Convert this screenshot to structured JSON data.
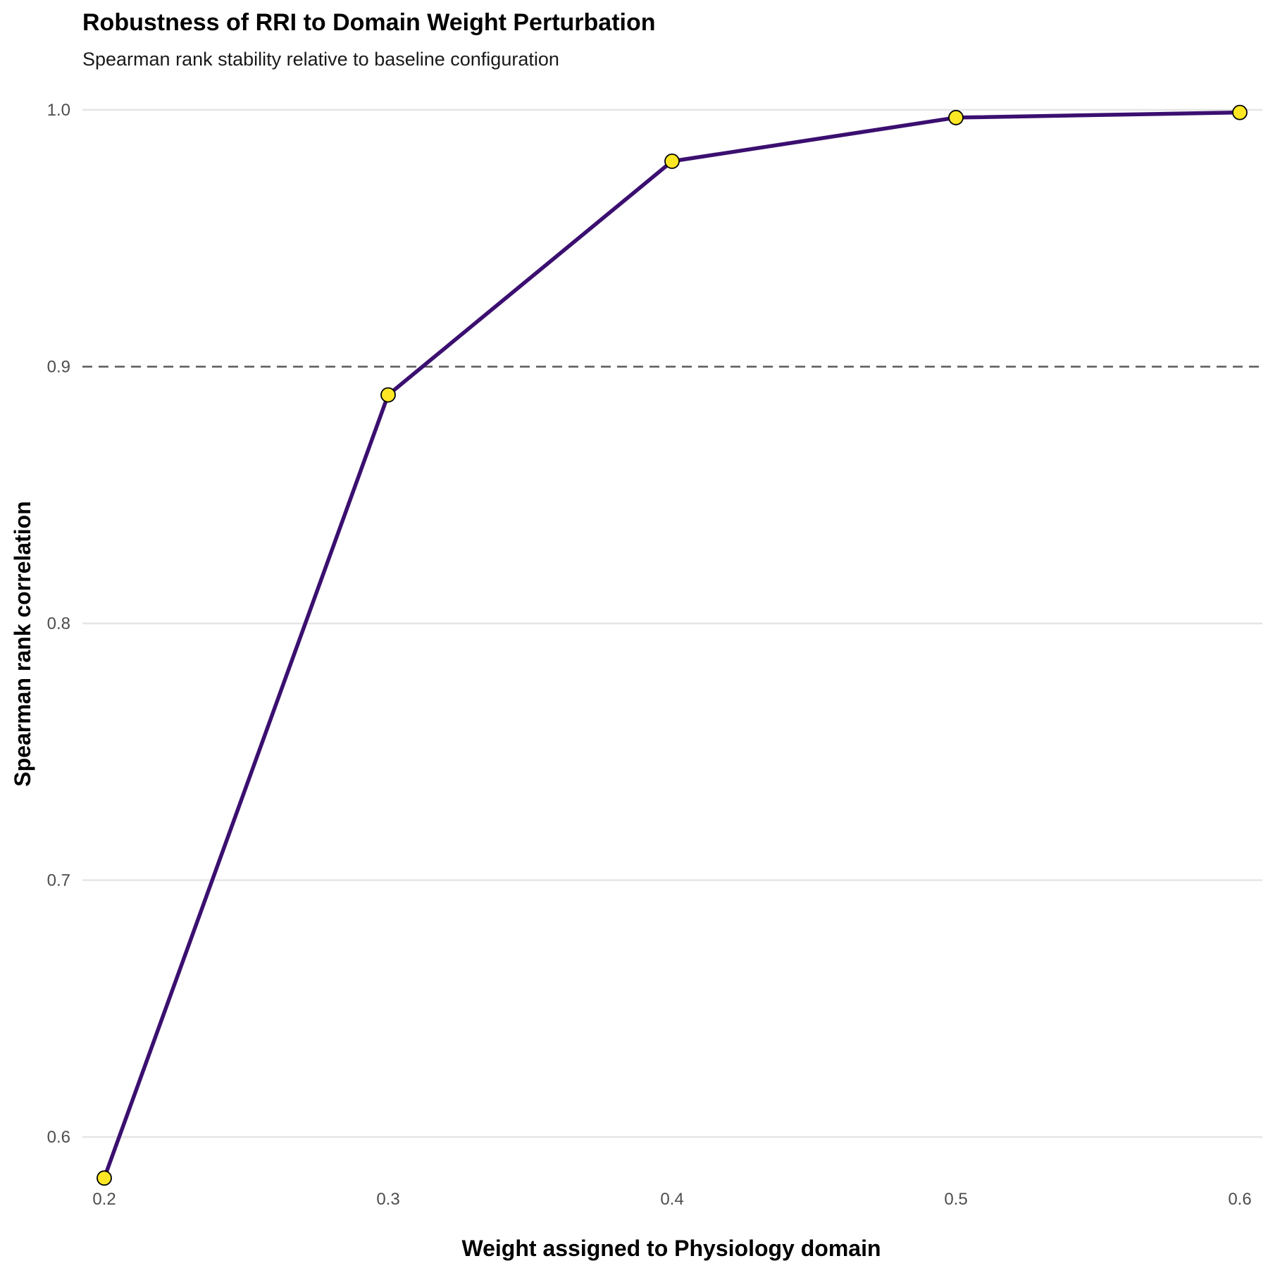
{
  "chart_data": {
    "type": "line",
    "title": "Robustness of RRI to Domain Weight Perturbation",
    "subtitle": "Spearman rank stability relative to baseline configuration",
    "xlabel": "Weight assigned to Physiology domain",
    "ylabel": "Spearman rank correlation",
    "x": [
      0.2,
      0.3,
      0.4,
      0.5,
      0.6
    ],
    "series": [
      {
        "values": [
          0.584,
          0.889,
          0.98,
          0.997,
          0.999
        ]
      }
    ],
    "x_ticks": [
      "0.2",
      "0.3",
      "0.4",
      "0.5",
      "0.6"
    ],
    "y_ticks": [
      "0.6",
      "0.7",
      "0.8",
      "0.9",
      "1.0"
    ],
    "xlim": [
      0.2,
      0.6
    ],
    "ylim": [
      0.6,
      1.0
    ],
    "reference_line": {
      "y": 0.9,
      "style": "dashed"
    },
    "grid": "horizontal major",
    "colors": {
      "line": "#3b0f70",
      "point_fill": "#fde725",
      "point_stroke": "#000000",
      "reference": "#595959",
      "grid": "#e5e5e5"
    }
  }
}
